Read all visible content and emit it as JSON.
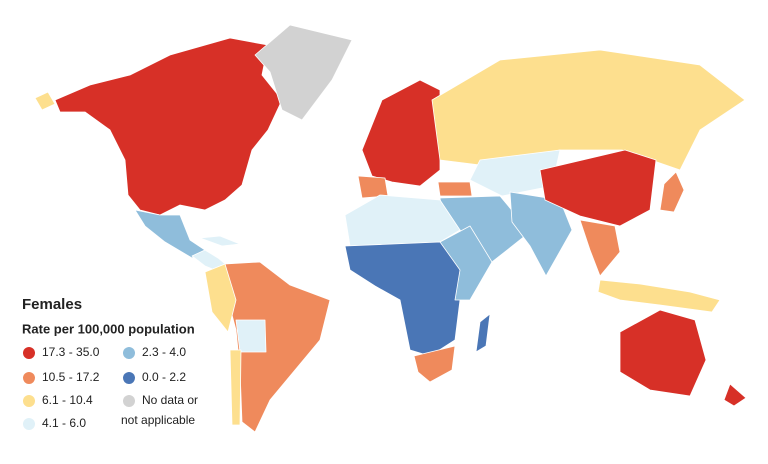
{
  "legend": {
    "title": "Females",
    "subtitle": "Rate per 100,000 population",
    "items": [
      {
        "label": "17.3 - 35.0",
        "color": "#d73027"
      },
      {
        "label": "10.5 - 17.2",
        "color": "#ef8a5c"
      },
      {
        "label": "6.1 - 10.4",
        "color": "#fddf8e"
      },
      {
        "label": "4.1 - 6.0",
        "color": "#e0f1f8"
      },
      {
        "label": "2.3 - 4.0",
        "color": "#8fbddb"
      },
      {
        "label": "0.0 - 2.2",
        "color": "#4a76b6"
      },
      {
        "label_lines": [
          "No data or",
          "not applicable"
        ],
        "color": "#d2d2d2"
      }
    ]
  }
}
